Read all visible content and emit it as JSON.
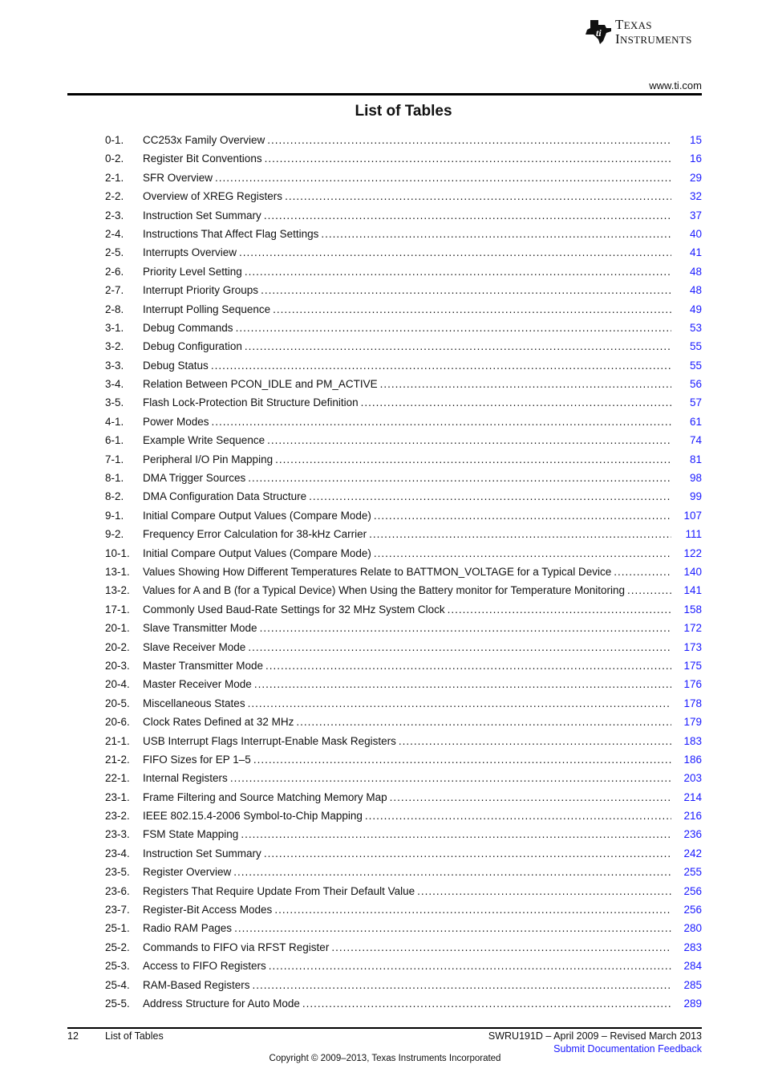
{
  "header": {
    "brand": "Texas Instruments",
    "url": "www.ti.com"
  },
  "title": "List of Tables",
  "entries": [
    {
      "num": "0-1.",
      "title": "CC253x Family Overview",
      "page": "15"
    },
    {
      "num": "0-2.",
      "title": "Register Bit Conventions",
      "page": "16"
    },
    {
      "num": "2-1.",
      "title": "SFR Overview",
      "page": "29"
    },
    {
      "num": "2-2.",
      "title": "Overview of XREG Registers",
      "page": "32"
    },
    {
      "num": "2-3.",
      "title": "Instruction Set Summary",
      "page": "37"
    },
    {
      "num": "2-4.",
      "title": "Instructions That Affect Flag Settings",
      "page": "40"
    },
    {
      "num": "2-5.",
      "title": "Interrupts Overview",
      "page": "41"
    },
    {
      "num": "2-6.",
      "title": "Priority Level Setting",
      "page": "48"
    },
    {
      "num": "2-7.",
      "title": "Interrupt Priority Groups",
      "page": "48"
    },
    {
      "num": "2-8.",
      "title": "Interrupt Polling Sequence",
      "page": "49"
    },
    {
      "num": "3-1.",
      "title": "Debug Commands",
      "page": "53"
    },
    {
      "num": "3-2.",
      "title": "Debug Configuration",
      "page": "55"
    },
    {
      "num": "3-3.",
      "title": "Debug Status",
      "page": "55"
    },
    {
      "num": "3-4.",
      "title": "Relation Between PCON_IDLE and PM_ACTIVE",
      "page": "56"
    },
    {
      "num": "3-5.",
      "title": "Flash Lock-Protection Bit Structure Definition",
      "page": "57"
    },
    {
      "num": "4-1.",
      "title": "Power Modes",
      "page": "61"
    },
    {
      "num": "6-1.",
      "title": "Example Write Sequence",
      "page": "74"
    },
    {
      "num": "7-1.",
      "title": "Peripheral I/O Pin Mapping",
      "page": "81"
    },
    {
      "num": "8-1.",
      "title": "DMA Trigger Sources",
      "page": "98"
    },
    {
      "num": "8-2.",
      "title": "DMA Configuration Data Structure",
      "page": "99"
    },
    {
      "num": "9-1.",
      "title": "Initial Compare Output Values (Compare Mode)",
      "page": "107"
    },
    {
      "num": "9-2.",
      "title": "Frequency Error Calculation for 38-kHz Carrier",
      "page": "111"
    },
    {
      "num": "10-1.",
      "title": "Initial Compare Output Values (Compare Mode)",
      "page": "122"
    },
    {
      "num": "13-1.",
      "title": "Values Showing How Different Temperatures Relate to BATTMON_VOLTAGE for a Typical Device",
      "page": "140"
    },
    {
      "num": "13-2.",
      "title": "Values for A and B (for a Typical Device) When Using the Battery monitor for Temperature Monitoring",
      "page": "141"
    },
    {
      "num": "17-1.",
      "title": "Commonly Used Baud-Rate Settings for 32 MHz System Clock",
      "page": "158"
    },
    {
      "num": "20-1.",
      "title": "Slave Transmitter Mode",
      "page": "172"
    },
    {
      "num": "20-2.",
      "title": "Slave Receiver Mode",
      "page": "173"
    },
    {
      "num": "20-3.",
      "title": "Master Transmitter Mode",
      "page": "175"
    },
    {
      "num": "20-4.",
      "title": "Master Receiver Mode",
      "page": "176"
    },
    {
      "num": "20-5.",
      "title": "Miscellaneous States",
      "page": "178"
    },
    {
      "num": "20-6.",
      "title": "Clock Rates Defined at 32 MHz",
      "page": "179"
    },
    {
      "num": "21-1.",
      "title": "USB Interrupt Flags Interrupt-Enable Mask Registers",
      "page": "183"
    },
    {
      "num": "21-2.",
      "title": "FIFO Sizes for EP 1–5",
      "page": "186"
    },
    {
      "num": "22-1.",
      "title": "Internal Registers",
      "page": "203"
    },
    {
      "num": "23-1.",
      "title": "Frame Filtering and Source Matching Memory Map",
      "page": "214"
    },
    {
      "num": "23-2.",
      "title": "IEEE 802.15.4-2006 Symbol-to-Chip Mapping",
      "page": "216"
    },
    {
      "num": "23-3.",
      "title": "FSM State Mapping",
      "page": "236"
    },
    {
      "num": "23-4.",
      "title": "Instruction Set Summary",
      "page": "242"
    },
    {
      "num": "23-5.",
      "title": "Register Overview",
      "page": "255"
    },
    {
      "num": "23-6.",
      "title": "Registers That Require Update From Their Default Value",
      "page": "256"
    },
    {
      "num": "23-7.",
      "title": "Register-Bit Access Modes",
      "page": "256"
    },
    {
      "num": "25-1.",
      "title": "Radio RAM Pages",
      "page": "280"
    },
    {
      "num": "25-2.",
      "title": "Commands to FIFO via RFST Register",
      "page": "283"
    },
    {
      "num": "25-3.",
      "title": "Access to FIFO Registers",
      "page": "284"
    },
    {
      "num": "25-4.",
      "title": "RAM-Based Registers",
      "page": "285"
    },
    {
      "num": "25-5.",
      "title": "Address Structure for Auto Mode",
      "page": "289"
    }
  ],
  "footer": {
    "page_number": "12",
    "section": "List of Tables",
    "doc_id": "SWRU191D – April 2009 – Revised March 2013",
    "feedback_link": "Submit Documentation Feedback",
    "copyright": "Copyright © 2009–2013, Texas Instruments Incorporated"
  },
  "colors": {
    "link": "#1a1aff",
    "text": "#111111"
  }
}
